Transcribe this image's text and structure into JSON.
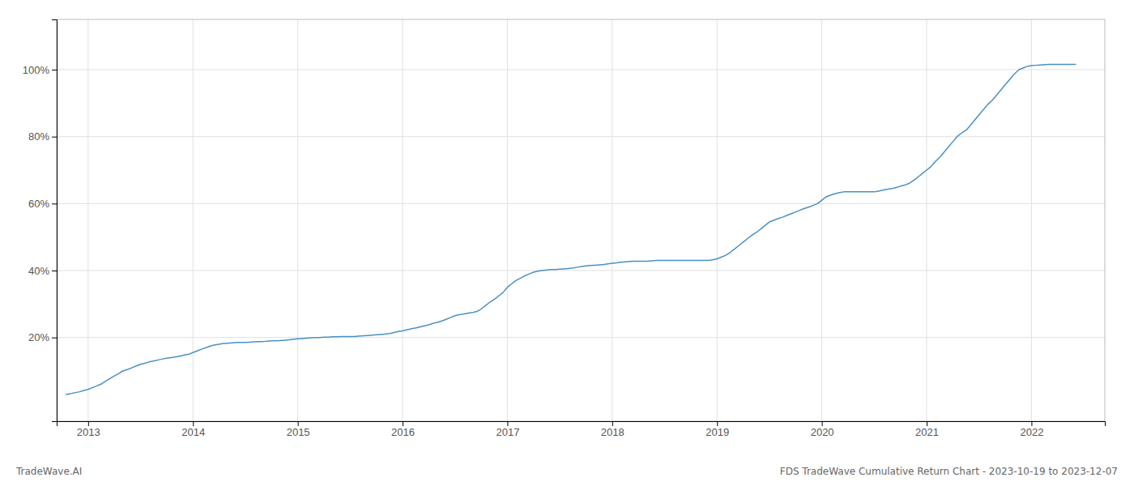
{
  "chart_data": {
    "type": "line",
    "title": "FDS TradeWave Cumulative Return Chart - 2023-10-19 to 2023-12-07",
    "annotations": [
      "TradeWave.AI"
    ],
    "color": "#4a90c4",
    "grid": true,
    "xlim": [
      2012.7,
      2022.7
    ],
    "xticks": [
      2013,
      2014,
      2015,
      2016,
      2017,
      2018,
      2019,
      2020,
      2021,
      2022
    ],
    "ylim": [
      -5,
      115
    ],
    "yticks": [
      {
        "value": 20,
        "label": "20%"
      },
      {
        "value": 40,
        "label": "40%"
      },
      {
        "value": 60,
        "label": "60%"
      },
      {
        "value": 80,
        "label": "80%"
      },
      {
        "value": 100,
        "label": "100%"
      }
    ],
    "x": [
      2012.79,
      2012.83,
      2012.87,
      2012.92,
      2012.96,
      2013.0,
      2013.04,
      2013.08,
      2013.13,
      2013.17,
      2013.21,
      2013.25,
      2013.29,
      2013.33,
      2013.38,
      2013.42,
      2013.46,
      2013.5,
      2013.54,
      2013.58,
      2013.63,
      2013.67,
      2013.71,
      2013.75,
      2013.79,
      2013.83,
      2013.88,
      2013.92,
      2013.96,
      2014.0,
      2014.04,
      2014.08,
      2014.13,
      2014.17,
      2014.21,
      2014.25,
      2014.29,
      2014.33,
      2014.38,
      2014.42,
      2014.46,
      2014.5,
      2014.54,
      2014.58,
      2014.63,
      2014.67,
      2014.71,
      2014.75,
      2014.79,
      2014.83,
      2014.88,
      2014.92,
      2014.96,
      2015.0,
      2015.04,
      2015.08,
      2015.13,
      2015.17,
      2015.21,
      2015.25,
      2015.29,
      2015.33,
      2015.38,
      2015.42,
      2015.46,
      2015.5,
      2015.54,
      2015.58,
      2015.63,
      2015.67,
      2015.71,
      2015.75,
      2015.79,
      2015.83,
      2015.88,
      2015.92,
      2015.96,
      2016.0,
      2016.04,
      2016.08,
      2016.13,
      2016.17,
      2016.21,
      2016.25,
      2016.29,
      2016.33,
      2016.38,
      2016.42,
      2016.46,
      2016.5,
      2016.54,
      2016.58,
      2016.63,
      2016.67,
      2016.71,
      2016.75,
      2016.79,
      2016.83,
      2016.88,
      2016.92,
      2016.96,
      2017.0,
      2017.04,
      2017.08,
      2017.13,
      2017.17,
      2017.21,
      2017.25,
      2017.29,
      2017.33,
      2017.38,
      2017.42,
      2017.46,
      2017.5,
      2017.54,
      2017.58,
      2017.63,
      2017.67,
      2017.71,
      2017.75,
      2017.79,
      2017.83,
      2017.88,
      2017.92,
      2017.96,
      2018.0,
      2018.04,
      2018.08,
      2018.13,
      2018.17,
      2018.21,
      2018.25,
      2018.29,
      2018.33,
      2018.38,
      2018.42,
      2018.46,
      2018.5,
      2018.54,
      2018.58,
      2018.63,
      2018.67,
      2018.71,
      2018.75,
      2018.79,
      2018.83,
      2018.88,
      2018.92,
      2018.96,
      2019.0,
      2019.04,
      2019.08,
      2019.13,
      2019.17,
      2019.21,
      2019.25,
      2019.29,
      2019.33,
      2019.38,
      2019.42,
      2019.46,
      2019.5,
      2019.54,
      2019.58,
      2019.63,
      2019.67,
      2019.71,
      2019.75,
      2019.79,
      2019.83,
      2019.88,
      2019.92,
      2019.96,
      2020.0,
      2020.04,
      2020.08,
      2020.13,
      2020.17,
      2020.21,
      2020.25,
      2020.29,
      2020.33,
      2020.38,
      2020.42,
      2020.46,
      2020.5,
      2020.54,
      2020.58,
      2020.63,
      2020.67,
      2020.71,
      2020.75,
      2020.79,
      2020.83,
      2020.88,
      2020.92,
      2020.96,
      2021.0,
      2021.04,
      2021.08,
      2021.13,
      2021.17,
      2021.21,
      2021.25,
      2021.29,
      2021.33,
      2021.38,
      2021.42,
      2021.46,
      2021.5,
      2021.54,
      2021.58,
      2021.63,
      2021.67,
      2021.71,
      2021.75,
      2021.79,
      2021.83,
      2021.88,
      2021.92,
      2021.96,
      2022.0,
      2022.04,
      2022.08,
      2022.13,
      2022.17,
      2022.21,
      2022.25,
      2022.33,
      2022.42
    ],
    "values": [
      3.0,
      3.2,
      3.5,
      3.8,
      4.2,
      4.5,
      5.0,
      5.5,
      6.2,
      7.0,
      7.8,
      8.5,
      9.2,
      10.0,
      10.5,
      11.0,
      11.5,
      12.0,
      12.3,
      12.7,
      13.0,
      13.3,
      13.6,
      13.8,
      14.0,
      14.2,
      14.5,
      14.8,
      15.0,
      15.5,
      16.0,
      16.5,
      17.0,
      17.5,
      17.8,
      18.0,
      18.2,
      18.3,
      18.4,
      18.5,
      18.5,
      18.5,
      18.6,
      18.7,
      18.8,
      18.8,
      18.9,
      19.0,
      19.0,
      19.1,
      19.2,
      19.3,
      19.5,
      19.6,
      19.7,
      19.8,
      19.9,
      20.0,
      20.0,
      20.1,
      20.1,
      20.2,
      20.2,
      20.3,
      20.3,
      20.3,
      20.3,
      20.4,
      20.5,
      20.6,
      20.7,
      20.8,
      20.9,
      21.0,
      21.2,
      21.5,
      21.8,
      22.0,
      22.3,
      22.6,
      22.9,
      23.2,
      23.5,
      23.8,
      24.2,
      24.5,
      25.0,
      25.5,
      26.0,
      26.5,
      26.8,
      27.0,
      27.3,
      27.5,
      27.8,
      28.5,
      29.5,
      30.5,
      31.5,
      32.5,
      33.5,
      35.0,
      36.0,
      37.0,
      37.8,
      38.5,
      39.0,
      39.5,
      39.8,
      40.0,
      40.2,
      40.3,
      40.3,
      40.4,
      40.5,
      40.6,
      40.8,
      41.0,
      41.2,
      41.4,
      41.5,
      41.6,
      41.7,
      41.8,
      42.0,
      42.2,
      42.3,
      42.5,
      42.6,
      42.7,
      42.8,
      42.8,
      42.8,
      42.8,
      42.9,
      43.0,
      43.0,
      43.0,
      43.0,
      43.0,
      43.0,
      43.0,
      43.0,
      43.0,
      43.0,
      43.0,
      43.0,
      43.0,
      43.2,
      43.5,
      44.0,
      44.5,
      45.5,
      46.5,
      47.5,
      48.5,
      49.5,
      50.5,
      51.5,
      52.5,
      53.5,
      54.5,
      55.0,
      55.5,
      56.0,
      56.5,
      57.0,
      57.5,
      58.0,
      58.5,
      59.0,
      59.5,
      60.0,
      61.0,
      62.0,
      62.5,
      63.0,
      63.3,
      63.5,
      63.5,
      63.5,
      63.5,
      63.5,
      63.5,
      63.5,
      63.5,
      63.7,
      64.0,
      64.3,
      64.5,
      64.8,
      65.2,
      65.5,
      66.0,
      67.0,
      68.0,
      69.0,
      70.0,
      71.0,
      72.5,
      74.0,
      75.5,
      77.0,
      78.5,
      80.0,
      81.0,
      82.0,
      83.5,
      85.0,
      86.5,
      88.0,
      89.5,
      91.0,
      92.5,
      94.0,
      95.5,
      97.0,
      98.5,
      100.0,
      100.5,
      101.0,
      101.2,
      101.3,
      101.4,
      101.5,
      101.6,
      101.6,
      101.6,
      101.6,
      101.6
    ]
  }
}
